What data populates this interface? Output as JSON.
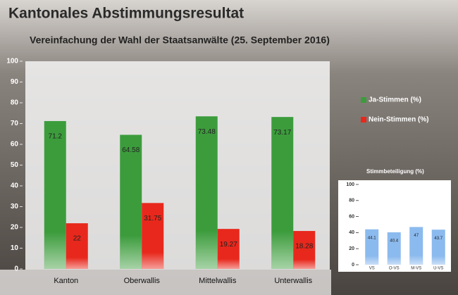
{
  "chart_data": [
    {
      "type": "bar",
      "title": "Kantonales Abstimmungsresultat",
      "subtitle": "Vereinfachung der Wahl der Staatsanwälte (25. September 2016)",
      "categories": [
        "Kanton",
        "Oberwallis",
        "Mittelwallis",
        "Unterwallis"
      ],
      "series": [
        {
          "name": "Ja-Stimmen (%)",
          "color": "#3c9c3c",
          "values": [
            71.2,
            64.58,
            73.48,
            73.17
          ]
        },
        {
          "name": "Nein-Stimmen (%)",
          "color": "#e8281c",
          "values": [
            22,
            31.75,
            19.27,
            18.28
          ]
        }
      ],
      "ylim": [
        0,
        100
      ],
      "yticks": [
        0,
        10,
        20,
        30,
        40,
        50,
        60,
        70,
        80,
        90,
        100
      ],
      "legend": "right"
    },
    {
      "type": "bar",
      "title": "Stimmbeteiligung (%)",
      "categories": [
        "VS",
        "O-VS",
        "M-VS",
        "U-VS"
      ],
      "series": [
        {
          "color": "#8bbaee",
          "values": [
            44.1,
            40.4,
            47,
            43.7
          ]
        }
      ],
      "ylim": [
        0,
        100
      ],
      "yticks": [
        0,
        20,
        40,
        60,
        80,
        100
      ]
    }
  ]
}
